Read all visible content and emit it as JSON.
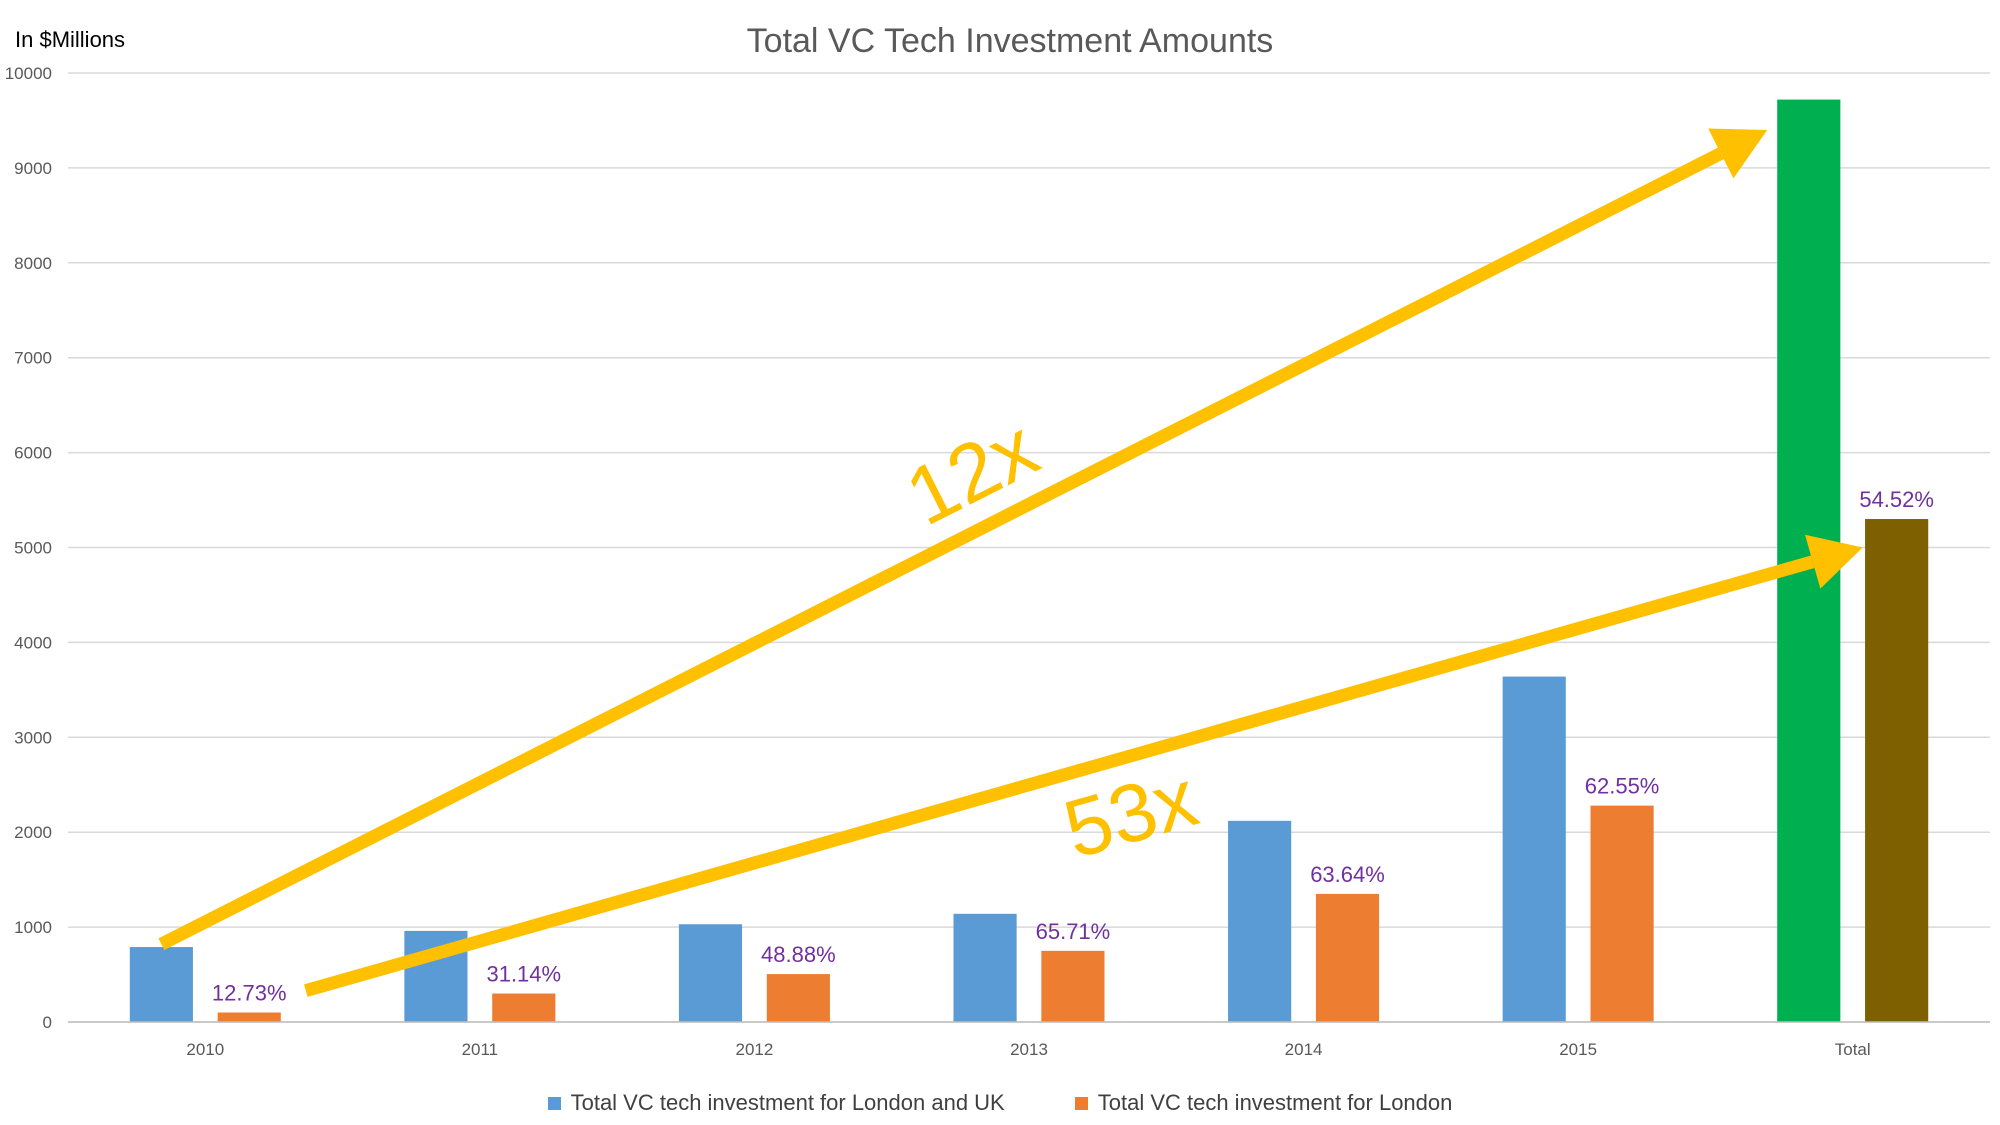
{
  "chart_data": {
    "type": "bar",
    "title": "Total VC Tech Investment Amounts",
    "unit_label": "In $Millions",
    "categories": [
      "2010",
      "2011",
      "2012",
      "2013",
      "2014",
      "2015",
      "Total"
    ],
    "series": [
      {
        "name": "Total VC tech investment for London and UK",
        "values": [
          790,
          960,
          1030,
          1140,
          2120,
          3640,
          9720
        ],
        "color": "#5B9BD5"
      },
      {
        "name": "Total VC tech investment for London",
        "values": [
          100,
          300,
          505,
          750,
          1350,
          2280,
          5300
        ],
        "color": "#ED7D31"
      }
    ],
    "total_colors": {
      "uk": "#00B050",
      "london": "#7F6000"
    },
    "percent_labels": [
      "12.73%",
      "31.14%",
      "48.88%",
      "65.71%",
      "63.64%",
      "62.55%",
      "54.52%"
    ],
    "ylim": [
      0,
      10000
    ],
    "yticks": [
      0,
      1000,
      2000,
      3000,
      4000,
      5000,
      6000,
      7000,
      8000,
      9000,
      10000
    ],
    "grid": true,
    "legend_position": "bottom",
    "annotations": [
      {
        "text": "12x",
        "from": {
          "category": "2010",
          "value": 820
        },
        "to": {
          "category": "Total",
          "value": 9400
        },
        "color": "#FFC000"
      },
      {
        "text": "53x",
        "from": {
          "category": "2010",
          "value": 330
        },
        "to": {
          "category": "Total",
          "value": 5000
        },
        "color": "#FFC000"
      }
    ],
    "percent_label_color": "#7030A0"
  }
}
